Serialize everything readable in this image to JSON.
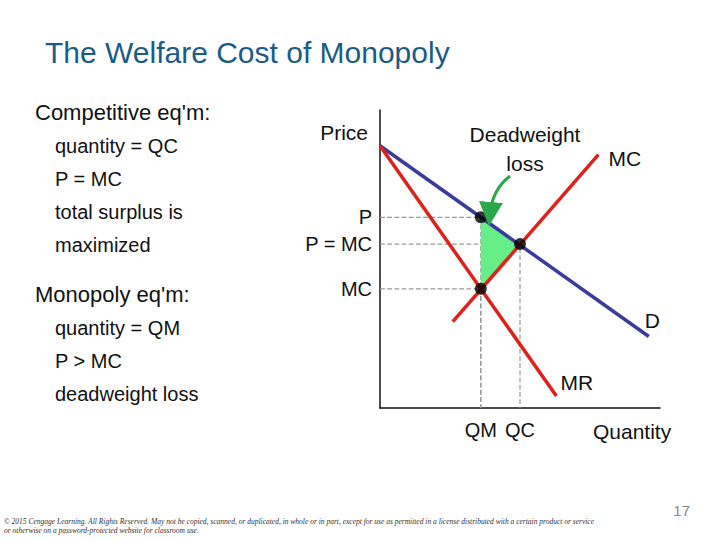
{
  "slide": {
    "title": "The Welfare Cost of Monopoly",
    "sections": [
      {
        "heading": "Competitive eq'm:",
        "items": [
          "quantity = QC",
          "P = MC",
          "total surplus is maximized"
        ]
      },
      {
        "heading": "Monopoly eq'm:",
        "items": [
          "quantity = QM",
          "P > MC",
          "deadweight loss"
        ]
      }
    ],
    "footer": "© 2015 Cengage Learning. All Rights Reserved. May not be copied, scanned, or duplicated, in whole or in part, except for use as permitted in a license distributed with a certain product or service or otherwise on a password-protected website for classroom use.",
    "page": 17
  },
  "chart_data": {
    "type": "line",
    "x_label": "Quantity",
    "y_label": "Price",
    "xlim": [
      0,
      100
    ],
    "ylim": [
      0,
      100
    ],
    "xticks": [
      {
        "value": 36,
        "label": "QM"
      },
      {
        "value": 50,
        "label": "QC"
      }
    ],
    "yticks": [
      {
        "value": 40,
        "label": "MC"
      },
      {
        "value": 55,
        "label": "P = MC"
      },
      {
        "value": 64,
        "label": "P"
      }
    ],
    "grid": false,
    "series": [
      {
        "name": "D",
        "color": "#3b3b9e",
        "x": [
          0,
          96
        ],
        "values": [
          88,
          24
        ]
      },
      {
        "name": "MR",
        "color": "#e0201b",
        "x": [
          0,
          63
        ],
        "values": [
          88,
          4
        ]
      },
      {
        "name": "MC",
        "color": "#e0201b",
        "x": [
          26,
          78
        ],
        "values": [
          29,
          85
        ]
      }
    ],
    "points": {
      "x": [
        36,
        50,
        36
      ],
      "values": [
        64,
        55,
        40
      ],
      "color": "#000000"
    },
    "deadweight_loss": {
      "label": "Deadweight loss",
      "x": [
        36,
        50,
        36
      ],
      "values": [
        64,
        55,
        40
      ],
      "color": "#66ee88"
    }
  }
}
